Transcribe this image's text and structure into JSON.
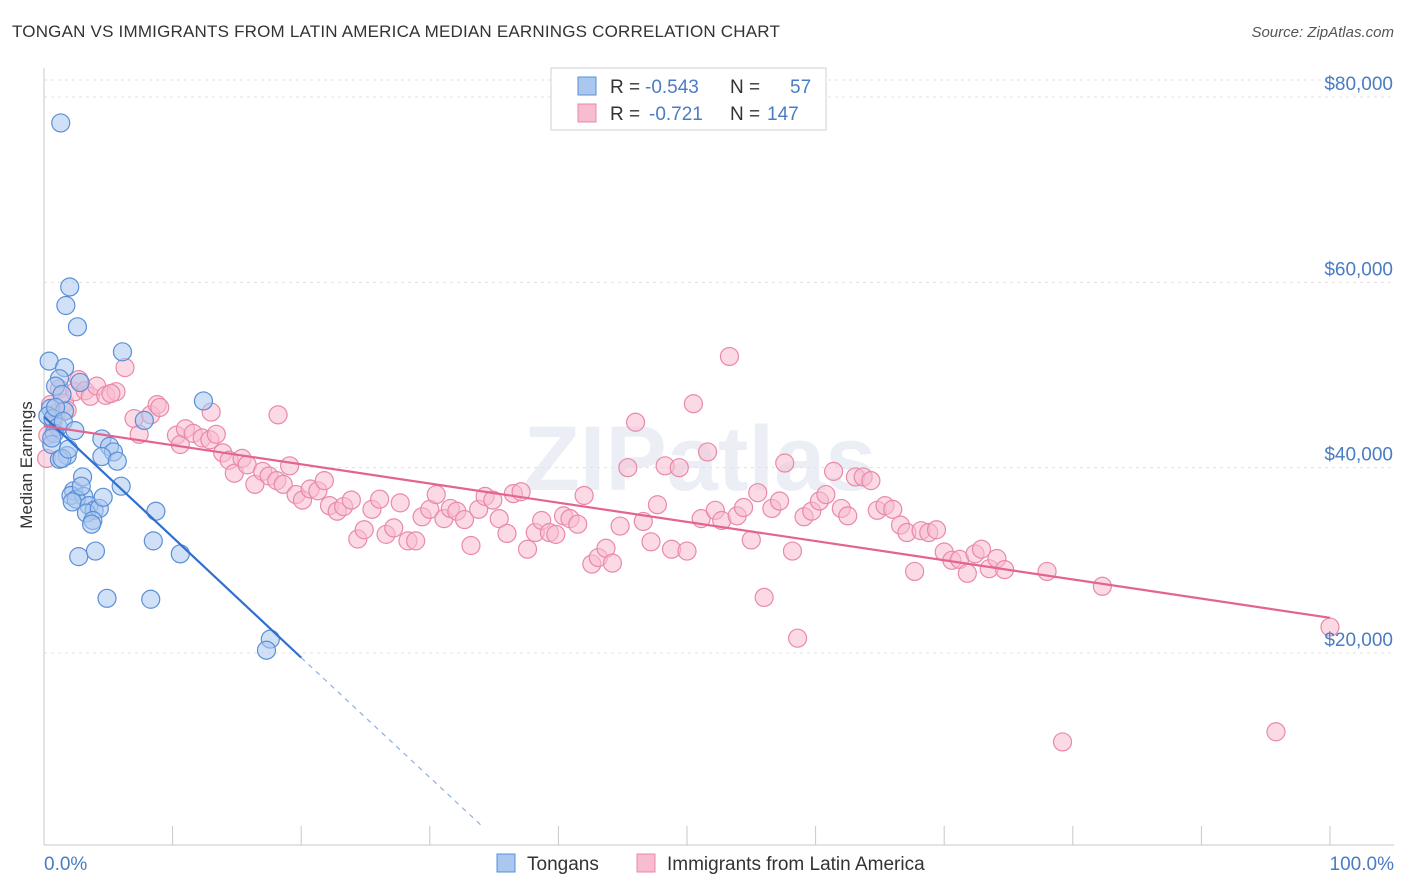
{
  "title": "TONGAN VS IMMIGRANTS FROM LATIN AMERICA MEDIAN EARNINGS CORRELATION CHART",
  "source": "Source: ZipAtlas.com",
  "watermark": "ZIPatlas",
  "legend": {
    "rows": [
      {
        "r_label": "R =",
        "r_value": "-0.543",
        "n_label": "N =",
        "n_value": "57"
      },
      {
        "r_label": "R =",
        "r_value": "-0.721",
        "n_label": "N =",
        "n_value": "147"
      }
    ]
  },
  "bottom_legend": [
    "Tongans",
    "Immigrants from Latin America"
  ],
  "colors": {
    "tongans_fill": "#a9c7ef",
    "tongans_stroke": "#5a8fd8",
    "tongans_line": "#2f6fcf",
    "latin_fill": "#f7bccf",
    "latin_stroke": "#ea89a8",
    "latin_line": "#e3648f",
    "tick_text": "#4a7cc4",
    "grid": "#e0e0e0"
  },
  "chart_data": {
    "type": "scatter",
    "xlabel": "",
    "ylabel": "Median Earnings",
    "xlim": [
      0,
      100
    ],
    "ylim": [
      0,
      82000
    ],
    "x_tick_labels": [
      "0.0%",
      "100.0%"
    ],
    "y_ticks": [
      20000,
      40000,
      60000,
      80000
    ],
    "y_tick_labels": [
      "$20,000",
      "$40,000",
      "$60,000",
      "$80,000"
    ],
    "grid": true,
    "legend_position": "top-center",
    "series": [
      {
        "name": "Tongans",
        "r": -0.543,
        "n": 57,
        "trendline": {
          "x0": 0,
          "y0": 45500,
          "x1": 20,
          "y1": 19500,
          "dashed_to_x": 34,
          "dashed_to_y": 1400
        },
        "points": [
          [
            1.3,
            77200
          ],
          [
            2.0,
            59500
          ],
          [
            1.7,
            57500
          ],
          [
            2.6,
            55200
          ],
          [
            0.4,
            51500
          ],
          [
            6.1,
            52500
          ],
          [
            1.6,
            50800
          ],
          [
            1.2,
            49600
          ],
          [
            2.8,
            49200
          ],
          [
            0.9,
            48800
          ],
          [
            1.4,
            47900
          ],
          [
            12.4,
            47200
          ],
          [
            0.5,
            46400
          ],
          [
            1.6,
            46100
          ],
          [
            0.3,
            45600
          ],
          [
            0.7,
            45300
          ],
          [
            7.8,
            45100
          ],
          [
            1.1,
            44400
          ],
          [
            0.8,
            43700
          ],
          [
            4.5,
            43100
          ],
          [
            0.6,
            42500
          ],
          [
            5.1,
            42300
          ],
          [
            5.4,
            41700
          ],
          [
            1.8,
            41300
          ],
          [
            4.5,
            41200
          ],
          [
            1.2,
            40900
          ],
          [
            5.7,
            40700
          ],
          [
            1.4,
            41000
          ],
          [
            6.0,
            38000
          ],
          [
            2.3,
            37500
          ],
          [
            2.1,
            37000
          ],
          [
            3.1,
            36900
          ],
          [
            2.5,
            36600
          ],
          [
            2.2,
            36300
          ],
          [
            3.5,
            35900
          ],
          [
            3.9,
            35400
          ],
          [
            3.3,
            35100
          ],
          [
            8.7,
            35300
          ],
          [
            4.3,
            35600
          ],
          [
            3.8,
            34300
          ],
          [
            3.7,
            33900
          ],
          [
            8.5,
            32100
          ],
          [
            4.0,
            31000
          ],
          [
            10.6,
            30700
          ],
          [
            2.7,
            30400
          ],
          [
            4.9,
            25900
          ],
          [
            8.3,
            25800
          ],
          [
            17.6,
            21500
          ],
          [
            17.3,
            20300
          ],
          [
            0.9,
            46500
          ],
          [
            1.5,
            45000
          ],
          [
            2.4,
            44000
          ],
          [
            0.6,
            43200
          ],
          [
            1.9,
            42000
          ],
          [
            3.0,
            39000
          ],
          [
            2.9,
            38000
          ],
          [
            4.6,
            36800
          ]
        ]
      },
      {
        "name": "Immigrants from Latin America",
        "r": -0.721,
        "n": 147,
        "trendline": {
          "x0": 0,
          "y0": 44500,
          "x1": 100,
          "y1": 23800
        },
        "points": [
          [
            0.5,
            46800
          ],
          [
            0.7,
            44800
          ],
          [
            0.3,
            43500
          ],
          [
            0.2,
            41000
          ],
          [
            1.2,
            48500
          ],
          [
            1.6,
            47000
          ],
          [
            2.4,
            48200
          ],
          [
            2.7,
            49500
          ],
          [
            3.2,
            48300
          ],
          [
            3.6,
            47700
          ],
          [
            4.1,
            48800
          ],
          [
            4.8,
            47800
          ],
          [
            5.6,
            48200
          ],
          [
            6.3,
            50800
          ],
          [
            7.0,
            45300
          ],
          [
            7.4,
            43600
          ],
          [
            8.3,
            45700
          ],
          [
            8.8,
            46800
          ],
          [
            9.0,
            46500
          ],
          [
            10.3,
            43500
          ],
          [
            10.6,
            42500
          ],
          [
            11.0,
            44200
          ],
          [
            11.6,
            43700
          ],
          [
            12.3,
            43200
          ],
          [
            12.9,
            43000
          ],
          [
            13.4,
            43600
          ],
          [
            13.9,
            41600
          ],
          [
            14.4,
            40800
          ],
          [
            14.8,
            39400
          ],
          [
            15.4,
            41000
          ],
          [
            15.8,
            40300
          ],
          [
            16.4,
            38200
          ],
          [
            17.0,
            39600
          ],
          [
            17.5,
            39100
          ],
          [
            18.1,
            38600
          ],
          [
            18.6,
            38200
          ],
          [
            19.1,
            40200
          ],
          [
            19.6,
            37100
          ],
          [
            20.1,
            36500
          ],
          [
            20.7,
            37700
          ],
          [
            21.3,
            37500
          ],
          [
            21.8,
            38600
          ],
          [
            22.2,
            35900
          ],
          [
            22.8,
            35300
          ],
          [
            23.3,
            35800
          ],
          [
            23.9,
            36500
          ],
          [
            24.4,
            32300
          ],
          [
            24.9,
            33300
          ],
          [
            25.5,
            35500
          ],
          [
            26.1,
            36600
          ],
          [
            26.6,
            32800
          ],
          [
            27.2,
            33500
          ],
          [
            27.7,
            36200
          ],
          [
            28.3,
            32100
          ],
          [
            28.9,
            32100
          ],
          [
            29.4,
            34700
          ],
          [
            30.0,
            35500
          ],
          [
            30.5,
            37100
          ],
          [
            31.1,
            34500
          ],
          [
            31.6,
            35600
          ],
          [
            32.1,
            35300
          ],
          [
            32.7,
            34400
          ],
          [
            33.2,
            31600
          ],
          [
            33.8,
            35500
          ],
          [
            34.3,
            36900
          ],
          [
            34.9,
            36500
          ],
          [
            35.4,
            34500
          ],
          [
            36.0,
            32900
          ],
          [
            36.5,
            37200
          ],
          [
            37.1,
            37400
          ],
          [
            37.6,
            31200
          ],
          [
            38.2,
            33000
          ],
          [
            38.7,
            34300
          ],
          [
            39.3,
            33000
          ],
          [
            39.8,
            32800
          ],
          [
            40.4,
            34800
          ],
          [
            40.9,
            34500
          ],
          [
            41.5,
            33900
          ],
          [
            42.0,
            37000
          ],
          [
            42.6,
            29600
          ],
          [
            43.1,
            30300
          ],
          [
            43.7,
            31300
          ],
          [
            44.2,
            29700
          ],
          [
            44.8,
            33700
          ],
          [
            45.4,
            40000
          ],
          [
            46.0,
            44900
          ],
          [
            46.6,
            34200
          ],
          [
            47.2,
            32000
          ],
          [
            47.7,
            36000
          ],
          [
            48.3,
            40200
          ],
          [
            48.8,
            31200
          ],
          [
            49.4,
            40000
          ],
          [
            50.0,
            31000
          ],
          [
            50.5,
            46900
          ],
          [
            51.1,
            34500
          ],
          [
            51.6,
            41700
          ],
          [
            52.2,
            35400
          ],
          [
            52.7,
            34300
          ],
          [
            53.3,
            52000
          ],
          [
            53.9,
            34800
          ],
          [
            54.4,
            35700
          ],
          [
            55.0,
            32200
          ],
          [
            55.5,
            37300
          ],
          [
            56.0,
            26000
          ],
          [
            56.6,
            35600
          ],
          [
            57.2,
            36400
          ],
          [
            57.6,
            40500
          ],
          [
            58.2,
            31000
          ],
          [
            58.6,
            21600
          ],
          [
            59.1,
            34700
          ],
          [
            59.7,
            35300
          ],
          [
            60.3,
            36400
          ],
          [
            60.8,
            37100
          ],
          [
            61.4,
            39600
          ],
          [
            62.0,
            35600
          ],
          [
            62.5,
            34800
          ],
          [
            63.1,
            39000
          ],
          [
            63.7,
            39000
          ],
          [
            64.3,
            38600
          ],
          [
            64.8,
            35400
          ],
          [
            65.4,
            35900
          ],
          [
            66.0,
            35500
          ],
          [
            66.6,
            33800
          ],
          [
            67.1,
            33000
          ],
          [
            67.7,
            28800
          ],
          [
            68.2,
            33200
          ],
          [
            68.8,
            33000
          ],
          [
            69.4,
            33300
          ],
          [
            70.0,
            30900
          ],
          [
            70.6,
            30000
          ],
          [
            71.2,
            30100
          ],
          [
            71.8,
            28600
          ],
          [
            72.4,
            30700
          ],
          [
            72.9,
            31200
          ],
          [
            73.5,
            29100
          ],
          [
            74.1,
            30200
          ],
          [
            74.7,
            29000
          ],
          [
            78.0,
            28800
          ],
          [
            79.2,
            10400
          ],
          [
            82.3,
            27200
          ],
          [
            95.8,
            11500
          ],
          [
            100.0,
            22800
          ],
          [
            0.9,
            45800
          ],
          [
            1.8,
            46200
          ],
          [
            5.2,
            48000
          ],
          [
            13.0,
            46000
          ],
          [
            18.2,
            45700
          ]
        ]
      }
    ]
  }
}
